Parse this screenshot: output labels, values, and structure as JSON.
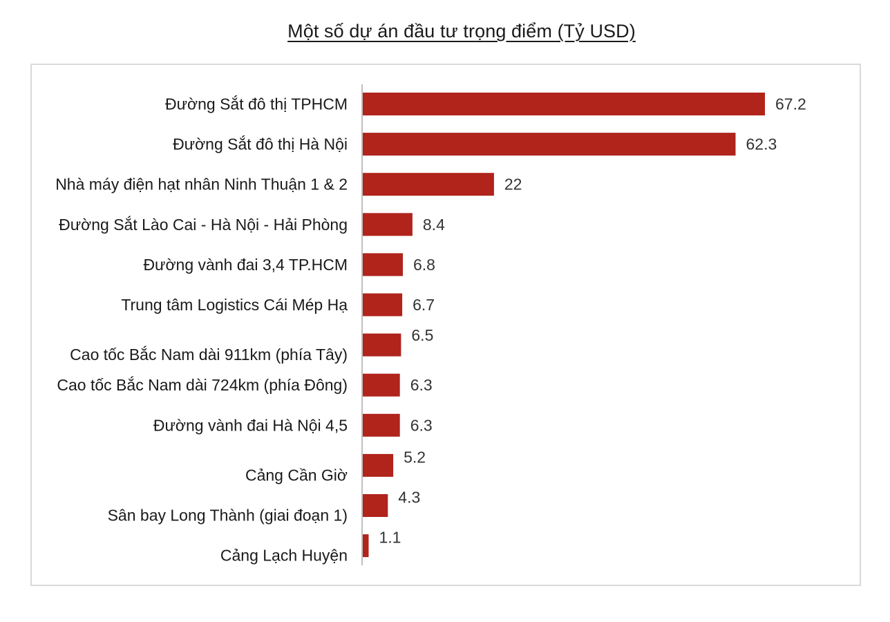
{
  "title": "Một số dự án đầu tư trọng điểm (Tỷ USD)",
  "colors": {
    "bar": "#b0241c",
    "axis": "#bfbfbf",
    "frame": "#d9d9d9"
  },
  "chart_data": {
    "type": "bar",
    "orientation": "horizontal",
    "title": "Một số dự án đầu tư trọng điểm (Tỷ USD)",
    "xlabel": "",
    "ylabel": "",
    "grid": false,
    "legend": "none",
    "xlim": [
      0,
      70
    ],
    "categories": [
      "Đường Sắt đô thị TPHCM",
      "Đường Sắt đô thị Hà Nội",
      "Nhà máy điện hạt nhân Ninh Thuận 1 & 2",
      "Đường Sắt Lào Cai - Hà Nội - Hải Phòng",
      "Đường vành đai 3,4 TP.HCM",
      "Trung tâm Logistics Cái Mép Hạ",
      "Cao tốc Bắc Nam dài 911km (phía Tây)",
      "Cao tốc Bắc Nam dài 724km (phía Đông)",
      "Đường vành đai Hà Nội 4,5",
      "Cảng Cần Giờ",
      "Sân bay Long Thành (giai đoạn 1)",
      "Cảng Lạch Huyện"
    ],
    "values": [
      67.2,
      62.3,
      22,
      8.4,
      6.8,
      6.7,
      6.5,
      6.3,
      6.3,
      5.2,
      4.3,
      1.1
    ],
    "value_labels": [
      "67.2",
      "62.3",
      "22",
      "8.4",
      "6.8",
      "6.7",
      "6.5",
      "6.3",
      "6.3",
      "5.2",
      "4.3",
      "1.1"
    ]
  }
}
